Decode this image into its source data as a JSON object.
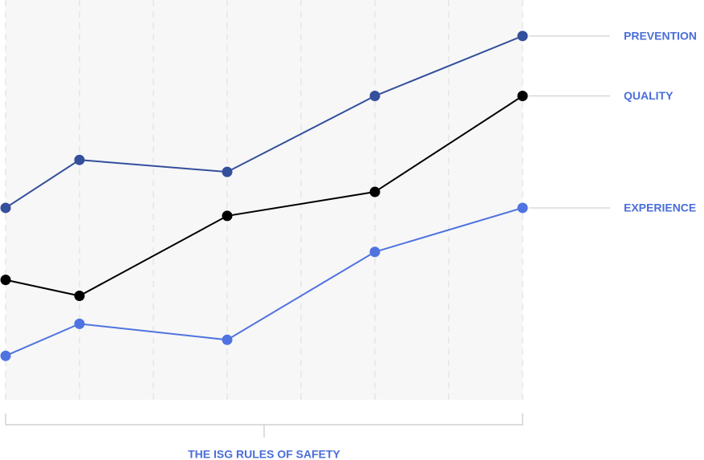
{
  "chart_data": {
    "type": "line",
    "xlabel": "THE ISG RULES OF SAFETY",
    "x": [
      0,
      1,
      3,
      5,
      7
    ],
    "xlim": [
      0,
      7
    ],
    "xticks": [
      0,
      1,
      2,
      3,
      4,
      5,
      6,
      7
    ],
    "ylim": [
      0,
      100
    ],
    "grid": true,
    "series": [
      {
        "name": "PREVENTION",
        "color": "#344f9c",
        "values": [
          48,
          60,
          57,
          76,
          91
        ]
      },
      {
        "name": "QUALITY",
        "color": "#000000",
        "values": [
          30,
          26,
          46,
          52,
          76
        ]
      },
      {
        "name": "EXPERIENCE",
        "color": "#4f73e0",
        "values": [
          11,
          19,
          15,
          37,
          48
        ]
      }
    ]
  }
}
